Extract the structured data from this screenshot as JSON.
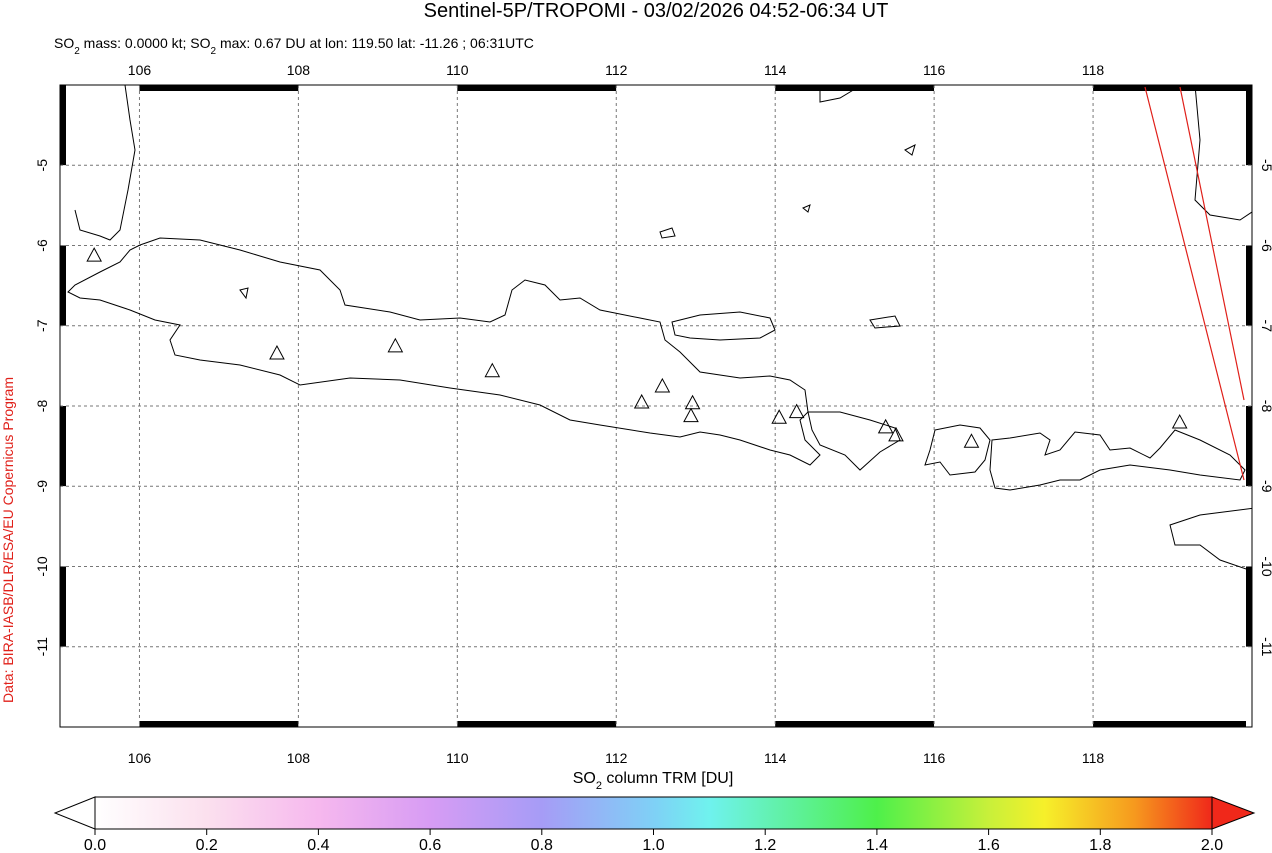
{
  "header": {
    "title": "Sentinel-5P/TROPOMI - 03/02/2026 04:52-06:34 UT",
    "subtitle_parts": [
      "SO",
      "2",
      " mass: 0.0000 kt; SO",
      "2",
      " max: 0.67 DU at lon: 119.50 lat: -11.26 ; 06:31UTC"
    ]
  },
  "credit": "Data: BIRA-IASB/DLR/ESA/EU Copernicus Program",
  "map": {
    "xlim": [
      105,
      120
    ],
    "ylim": [
      -12,
      -4
    ],
    "xticks": [
      106,
      108,
      110,
      112,
      114,
      116,
      118
    ],
    "yticks": [
      -5,
      -6,
      -7,
      -8,
      -9,
      -10,
      -11
    ],
    "grid": true,
    "volcanoes": [
      {
        "lon": 105.43,
        "lat": -6.12
      },
      {
        "lon": 107.73,
        "lat": -7.34
      },
      {
        "lon": 109.22,
        "lat": -7.25
      },
      {
        "lon": 110.44,
        "lat": -7.56
      },
      {
        "lon": 112.32,
        "lat": -7.95
      },
      {
        "lon": 112.58,
        "lat": -7.75
      },
      {
        "lon": 112.96,
        "lat": -7.96
      },
      {
        "lon": 112.94,
        "lat": -8.12
      },
      {
        "lon": 114.05,
        "lat": -8.14
      },
      {
        "lon": 114.27,
        "lat": -8.07
      },
      {
        "lon": 115.39,
        "lat": -8.26
      },
      {
        "lon": 115.52,
        "lat": -8.36
      },
      {
        "lon": 116.47,
        "lat": -8.44
      },
      {
        "lon": 119.09,
        "lat": -8.2
      }
    ]
  },
  "colorbar": {
    "label_parts": [
      "SO",
      "2",
      " column TRM [DU]"
    ],
    "lim": [
      0,
      2
    ],
    "ticks": [
      {
        "value": 0,
        "label": "0.0"
      },
      {
        "value": 0.2,
        "label": "0.2"
      },
      {
        "value": 0.4,
        "label": "0.4"
      },
      {
        "value": 0.6,
        "label": "0.6"
      },
      {
        "value": 0.8,
        "label": "0.8"
      },
      {
        "value": 1,
        "label": "1.0"
      },
      {
        "value": 1.2,
        "label": "1.2"
      },
      {
        "value": 1.4,
        "label": "1.4"
      },
      {
        "value": 1.6,
        "label": "1.6"
      },
      {
        "value": 1.8,
        "label": "1.8"
      },
      {
        "value": 2,
        "label": "2.0"
      }
    ]
  }
}
